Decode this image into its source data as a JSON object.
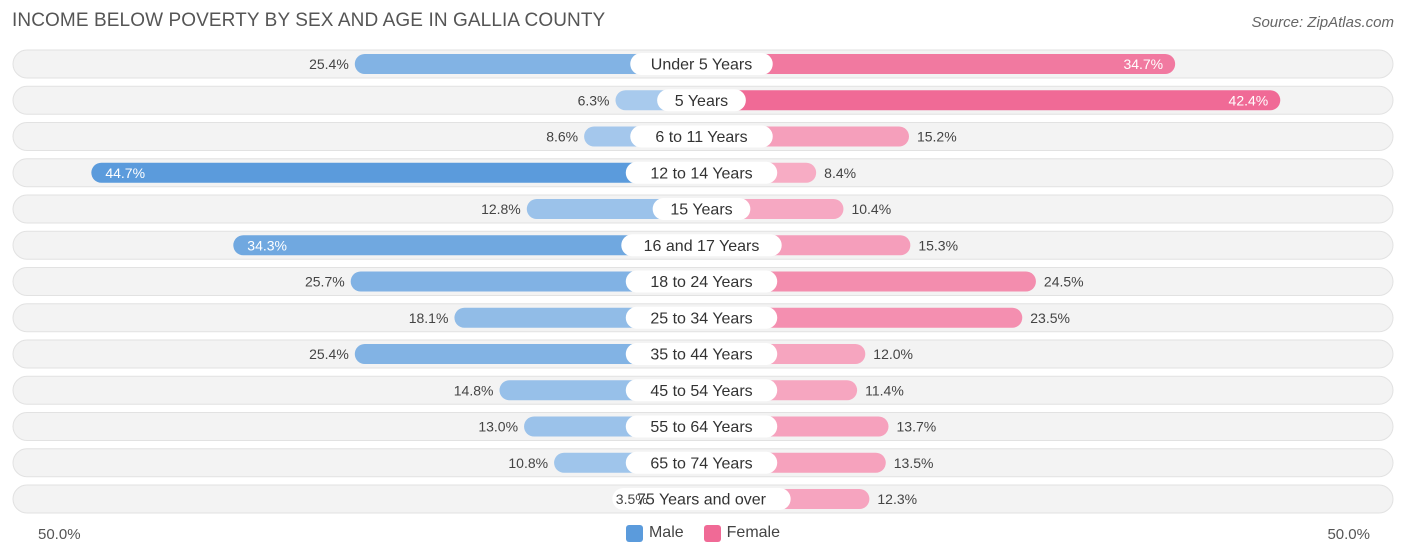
{
  "chart_data": {
    "type": "bar",
    "orientation": "horizontal-diverging",
    "title": "INCOME BELOW POVERTY BY SEX AND AGE IN GALLIA COUNTY",
    "source": "Source: ZipAtlas.com",
    "categories": [
      "Under 5 Years",
      "5 Years",
      "6 to 11 Years",
      "12 to 14 Years",
      "15 Years",
      "16 and 17 Years",
      "18 to 24 Years",
      "25 to 34 Years",
      "35 to 44 Years",
      "45 to 54 Years",
      "55 to 64 Years",
      "65 to 74 Years",
      "75 Years and over"
    ],
    "series": [
      {
        "name": "Male",
        "values": [
          25.4,
          6.3,
          8.6,
          44.7,
          12.8,
          34.3,
          25.7,
          18.1,
          25.4,
          14.8,
          13.0,
          10.8,
          3.5
        ],
        "labels": [
          "25.4%",
          "6.3%",
          "8.6%",
          "44.7%",
          "12.8%",
          "34.3%",
          "25.7%",
          "18.1%",
          "25.4%",
          "14.8%",
          "13.0%",
          "10.8%",
          "3.5%"
        ]
      },
      {
        "name": "Female",
        "values": [
          34.7,
          42.4,
          15.2,
          8.4,
          10.4,
          15.3,
          24.5,
          23.5,
          12.0,
          11.4,
          13.7,
          13.5,
          12.3
        ],
        "labels": [
          "34.7%",
          "42.4%",
          "15.2%",
          "8.4%",
          "10.4%",
          "15.3%",
          "24.5%",
          "23.5%",
          "12.0%",
          "11.4%",
          "13.7%",
          "13.5%",
          "12.3%"
        ]
      }
    ],
    "xlim": [
      -50,
      50
    ],
    "axis_labels": {
      "left": "50.0%",
      "right": "50.0%"
    },
    "legend": [
      {
        "name": "Male",
        "color": "#5b9bdc"
      },
      {
        "name": "Female",
        "color": "#f06a96"
      }
    ]
  }
}
